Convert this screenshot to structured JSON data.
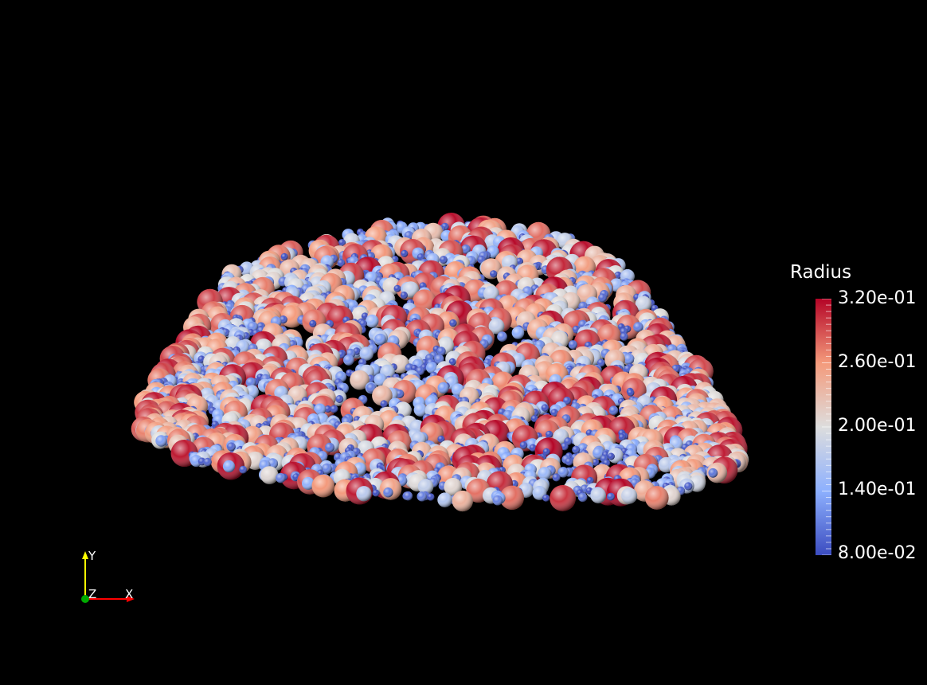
{
  "legend": {
    "title": "Radius",
    "ticks": [
      "3.20e-01",
      "2.60e-01",
      "2.00e-01",
      "1.40e-01",
      "8.00e-02"
    ],
    "range": [
      0.08,
      0.32
    ],
    "colormap": [
      "#3b4cc0",
      "#8db0fe",
      "#dddddd",
      "#f49a7b",
      "#b40426"
    ]
  },
  "axes": {
    "x": "X",
    "y": "Y",
    "z": "Z",
    "x_color": "#ff0000",
    "y_color": "#ffff00",
    "z_color": "#00aa00"
  },
  "scene": {
    "icon": "sphere-particle-pile"
  }
}
